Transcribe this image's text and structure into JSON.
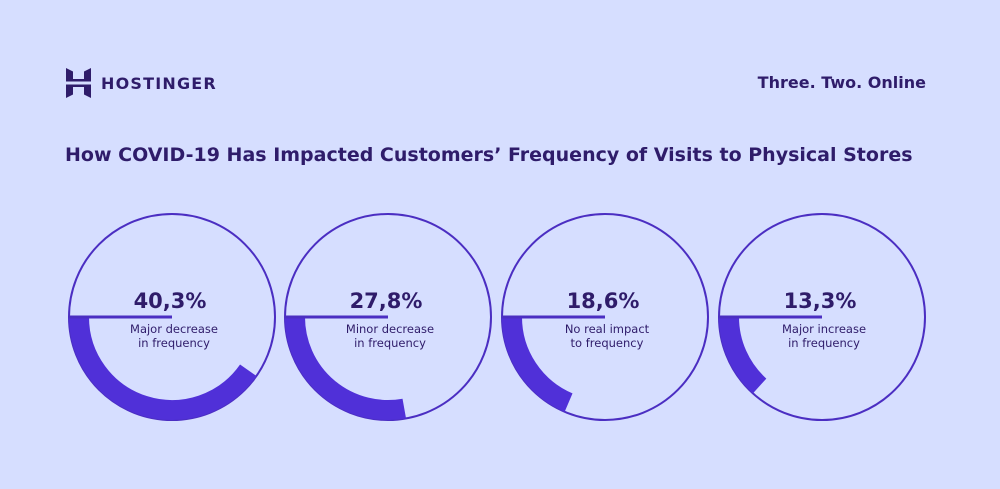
{
  "brand": {
    "name": "HOSTINGER",
    "tagline": "Three. Two. Online"
  },
  "chart_data": {
    "type": "gauge",
    "title": "How COVID-19 Has Impacted Customers’ Frequency of Visits to Physical Stores",
    "items": [
      {
        "value": 40.3,
        "value_label": "40,3%",
        "label_lines": [
          "Major decrease",
          "in frequency"
        ]
      },
      {
        "value": 27.8,
        "value_label": "27,8%",
        "label_lines": [
          "Minor decrease",
          "in frequency"
        ]
      },
      {
        "value": 18.6,
        "value_label": "18,6%",
        "label_lines": [
          "No real impact",
          "to frequency"
        ]
      },
      {
        "value": 13.3,
        "value_label": "13,3%",
        "label_lines": [
          "Major increase",
          "in frequency"
        ]
      }
    ],
    "colors": {
      "background": "#d6deff",
      "ring": "#4b2ec2",
      "arc": "#5030d8",
      "text": "#2f1c6a"
    }
  }
}
